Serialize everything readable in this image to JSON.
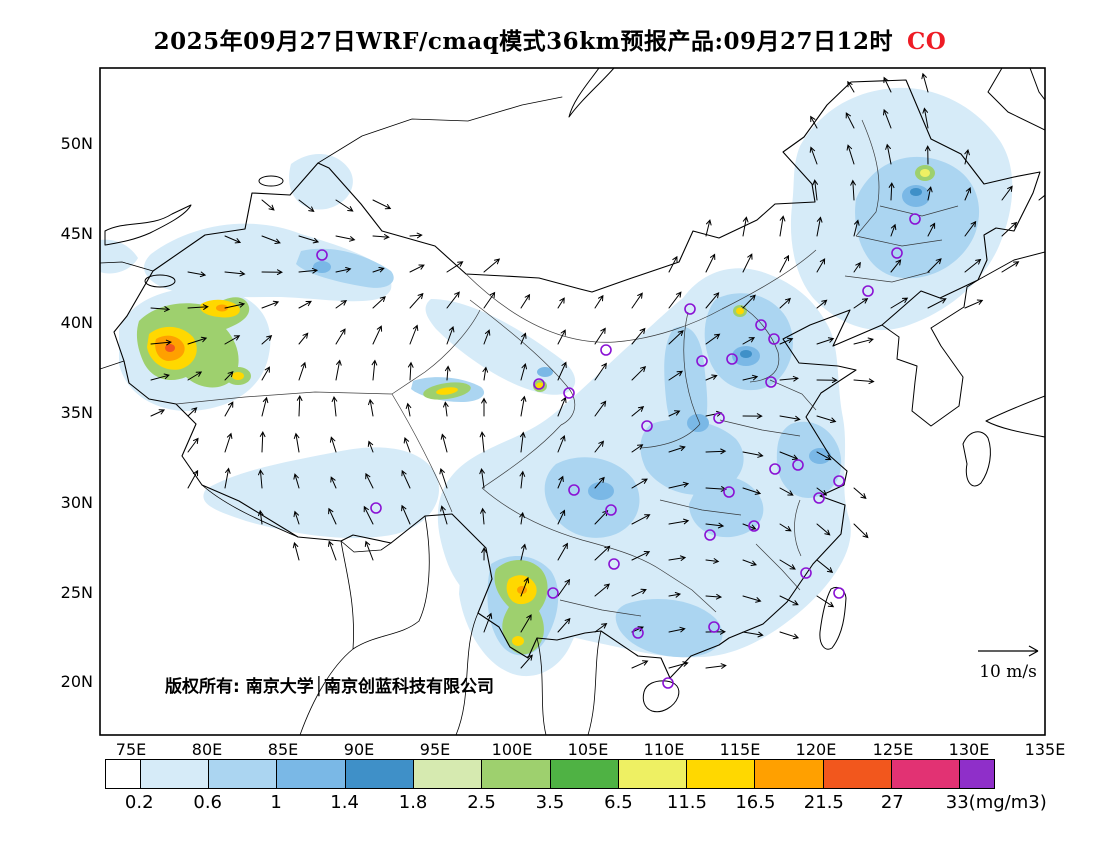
{
  "title": {
    "text": "2025年09月27日WRF/cmaq模式36km预报产品:09月27日12时",
    "species": "CO"
  },
  "colors": {
    "species_label": "#ee1c25",
    "city_marker": "#8a12d4"
  },
  "map": {
    "lat_labels": [
      "50N",
      "45N",
      "40N",
      "35N",
      "30N",
      "25N",
      "20N"
    ],
    "lon_labels": [
      "75E",
      "80E",
      "85E",
      "90E",
      "95E",
      "100E",
      "105E",
      "110E",
      "115E",
      "120E",
      "125E",
      "130E",
      "135E"
    ],
    "copyright": "版权所有: 南京大学│南京创蓝科技有限公司",
    "wind_reference_label": "10 m/s"
  },
  "colorbar": {
    "labels": [
      "0.2",
      "0.6",
      "1",
      "1.4",
      "1.8",
      "2.5",
      "3.5",
      "6.5",
      "11.5",
      "16.5",
      "21.5",
      "27",
      "33(mg/m3)"
    ],
    "colors": [
      "#ffffff",
      "#d6ebf8",
      "#abd5f1",
      "#7ab8e6",
      "#3f90c8",
      "#d6eab0",
      "#9ed06e",
      "#4fb244",
      "#eef063",
      "#ffd800",
      "#ffa000",
      "#f2571d",
      "#e23273",
      "#8f2fc9"
    ]
  },
  "chart_data": {
    "type": "heatmap",
    "title": "2025年09月27日WRF/cmaq模式36km预报产品:09月27日12时 CO",
    "model": "WRF/cmaq",
    "resolution_km": 36,
    "issue_date": "2025年09月27日",
    "valid_time": "09月27日12时",
    "variable": "CO",
    "unit": "mg/m3",
    "contour_levels": [
      0.2,
      0.6,
      1,
      1.4,
      1.8,
      2.5,
      3.5,
      6.5,
      11.5,
      16.5,
      21.5,
      27,
      33
    ],
    "palette": [
      "#ffffff",
      "#d6ebf8",
      "#abd5f1",
      "#7ab8e6",
      "#3f90c8",
      "#d6eab0",
      "#9ed06e",
      "#4fb244",
      "#eef063",
      "#ffd800",
      "#ffa000",
      "#f2571d",
      "#e23273",
      "#8f2fc9"
    ],
    "x_axis": {
      "label": "longitude",
      "ticks": [
        75,
        80,
        85,
        90,
        95,
        100,
        105,
        110,
        115,
        120,
        125,
        130,
        135
      ],
      "unit": "E"
    },
    "y_axis": {
      "label": "latitude",
      "ticks": [
        50,
        45,
        40,
        35,
        30,
        25,
        20
      ],
      "unit": "N"
    },
    "wind_reference_m_s": 10,
    "overlays": [
      "filled CO contours",
      "wind vectors",
      "city markers (purple circles)"
    ],
    "features": [
      {
        "region": "western Xinjiang (~76-79E, 38-40N)",
        "co_level_mg_m3": "11.5-21.5 hotspot"
      },
      {
        "region": "Yunnan (~100-101E, 24-26N)",
        "co_level_mg_m3": "6.5-16.5 hotspot"
      },
      {
        "region": "eastern and central China",
        "co_level_mg_m3": "0.2-1.8 background"
      },
      {
        "region": "scattered spots (Xining area, north Heilongjiang)",
        "co_level_mg_m3": "6.5-11.5"
      }
    ]
  }
}
